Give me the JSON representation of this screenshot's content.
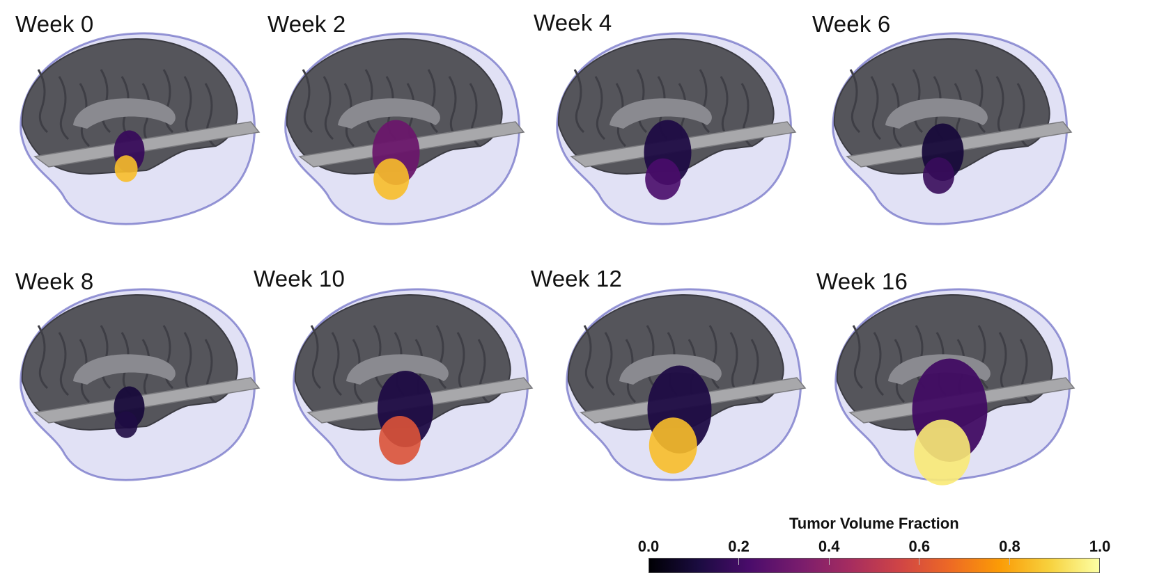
{
  "panels": [
    {
      "label": "Week 0",
      "tumor": 0.18,
      "core": 0.85,
      "extent": 0.55
    },
    {
      "label": "Week 2",
      "tumor": 0.3,
      "core": 0.85,
      "extent": 0.85
    },
    {
      "label": "Week 4",
      "tumor": 0.12,
      "core": 0.22,
      "extent": 0.85
    },
    {
      "label": "Week 6",
      "tumor": 0.1,
      "core": 0.18,
      "extent": 0.75
    },
    {
      "label": "Week 8",
      "tumor": 0.1,
      "core": 0.12,
      "extent": 0.55
    },
    {
      "label": "Week 10",
      "tumor": 0.12,
      "core": 0.6,
      "extent": 1.0
    },
    {
      "label": "Week 12",
      "tumor": 0.12,
      "core": 0.85,
      "extent": 1.15
    },
    {
      "label": "Week 16",
      "tumor": 0.2,
      "core": 0.95,
      "extent": 1.35
    }
  ],
  "colorbar": {
    "title": "Tumor Volume Fraction",
    "ticks": [
      "0.0",
      "0.2",
      "0.4",
      "0.6",
      "0.8",
      "1.0"
    ],
    "colors": [
      "#000004",
      "#1b0c41",
      "#4a0c6b",
      "#781c6d",
      "#a52c60",
      "#cf4446",
      "#ed6925",
      "#fb9b06",
      "#f7d13d",
      "#fcffa4"
    ]
  }
}
